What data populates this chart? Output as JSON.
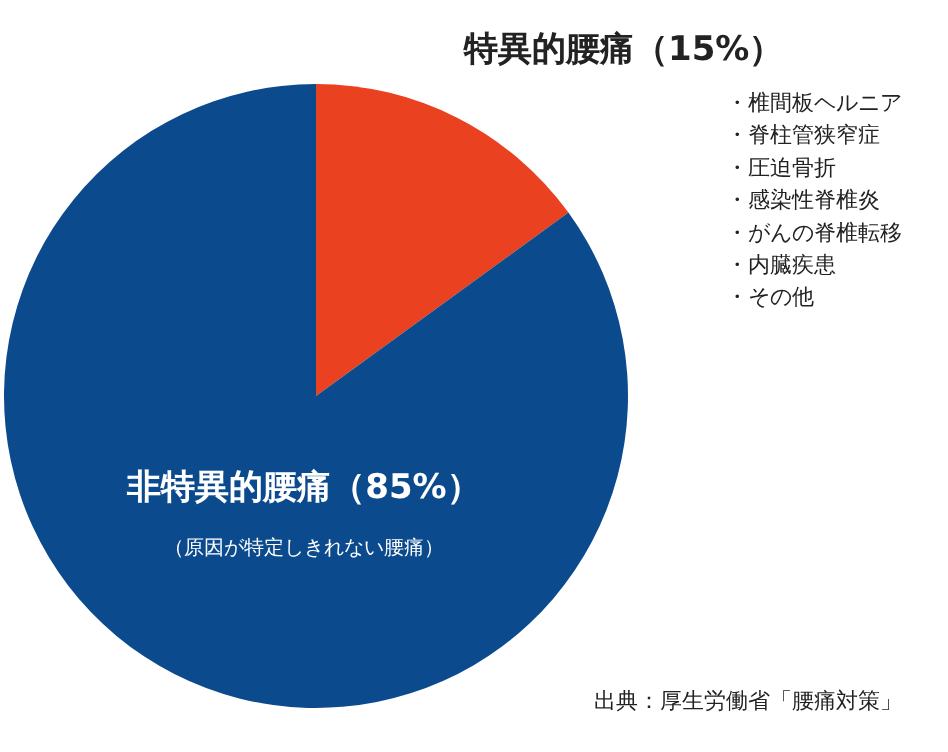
{
  "chart_data": {
    "type": "pie",
    "categories": [
      "特異的腰痛",
      "非特異的腰痛"
    ],
    "values": [
      15,
      85
    ],
    "colors": [
      "#ea4120",
      "#0c4a8e"
    ],
    "value_labels": [
      "（15%）",
      "（85%）"
    ],
    "annotations": [
      "（原因が特定しきれない腰痛）",
      "・椎間板ヘルニア",
      "・脊柱管狭窄症",
      "・圧迫骨折",
      "・感染性脊椎炎",
      "・がんの脊椎転移",
      "・内臓疾患",
      "・その他",
      "出典：厚生労働省「腰痛対策」"
    ]
  }
}
